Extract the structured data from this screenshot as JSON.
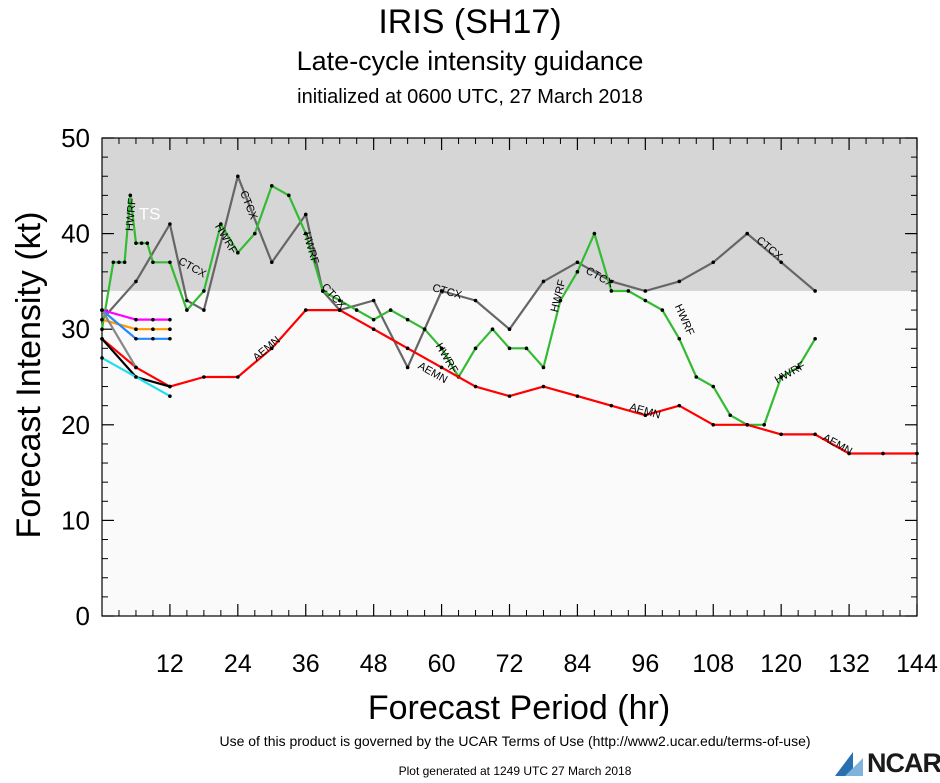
{
  "title": "IRIS (SH17)",
  "subtitle": "Late-cycle intensity guidance",
  "initialized": "initialized at 0600 UTC, 27 March 2018",
  "footer": {
    "terms": "Use of this product is governed by the UCAR Terms of Use (http://www2.ucar.edu/terms-of-use)",
    "generated": "Plot generated at 1249 UTC  27 March 2018",
    "logo": "NCAR"
  },
  "colors": {
    "ts_band": "#d6d6d6",
    "below_band": "#fafafa"
  },
  "chart_data": {
    "type": "line",
    "xlabel": "Forecast Period (hr)",
    "ylabel": "Forecast Intensity (kt)",
    "xlim": [
      0,
      144
    ],
    "ylim": [
      0,
      50
    ],
    "xticks": [
      12,
      24,
      36,
      48,
      60,
      72,
      84,
      96,
      108,
      120,
      132,
      144
    ],
    "yticks": [
      0,
      10,
      20,
      30,
      40,
      50
    ],
    "bands": [
      {
        "label": "TS",
        "from": 34,
        "to": 50,
        "color": "#d6d6d6"
      }
    ],
    "series": [
      {
        "name": "CTCX",
        "color": "#666666",
        "x": [
          0,
          6,
          12,
          15,
          18,
          24,
          30,
          36,
          39,
          42,
          48,
          54,
          60,
          66,
          72,
          78,
          84,
          90,
          96,
          102,
          108,
          114,
          120,
          126
        ],
        "y": [
          31,
          35,
          41,
          33,
          32,
          46,
          37,
          42,
          34,
          32,
          33,
          26,
          34,
          33,
          30,
          35,
          37,
          35,
          34,
          35,
          37,
          40,
          37,
          34
        ],
        "labels": [
          {
            "x": 16,
            "y": 36.5
          },
          {
            "x": 26,
            "y": 43
          },
          {
            "x": 41,
            "y": 33.5
          },
          {
            "x": 61,
            "y": 34
          },
          {
            "x": 88,
            "y": 35.5
          },
          {
            "x": 118,
            "y": 38.5
          }
        ]
      },
      {
        "name": "HWRF",
        "color": "#33bb33",
        "x": [
          0,
          2,
          3,
          4,
          5,
          6,
          7,
          8,
          9,
          12,
          15,
          18,
          21,
          24,
          27,
          30,
          33,
          36,
          39,
          42,
          45,
          48,
          51,
          54,
          57,
          60,
          63,
          66,
          69,
          72,
          75,
          78,
          81,
          84,
          87,
          90,
          93,
          96,
          99,
          102,
          105,
          108,
          111,
          114,
          117,
          120,
          123,
          126
        ],
        "y": [
          30,
          37,
          37,
          37,
          44,
          39,
          39,
          39,
          37,
          37,
          32,
          34,
          41,
          38,
          40,
          45,
          44,
          40,
          34,
          33,
          32,
          31,
          32,
          31,
          30,
          28,
          25,
          28,
          30,
          28,
          28,
          26,
          33,
          36,
          40,
          34,
          34,
          33,
          32,
          29,
          25,
          24,
          21,
          20,
          20,
          25,
          26,
          29
        ],
        "labels": [
          {
            "x": 5,
            "y": 42
          },
          {
            "x": 22,
            "y": 39.5
          },
          {
            "x": 37,
            "y": 38.5
          },
          {
            "x": 61,
            "y": 27
          },
          {
            "x": 80.5,
            "y": 33.5
          },
          {
            "x": 103,
            "y": 31
          },
          {
            "x": 121.5,
            "y": 25.5
          }
        ]
      },
      {
        "name": "AEMN",
        "color": "#ff0000",
        "x": [
          0,
          6,
          12,
          18,
          24,
          30,
          36,
          42,
          48,
          54,
          60,
          66,
          72,
          78,
          84,
          90,
          96,
          102,
          108,
          114,
          120,
          126,
          132,
          138,
          144
        ],
        "y": [
          29,
          26,
          24,
          25,
          25,
          28,
          32,
          32,
          30,
          28,
          26,
          24,
          23,
          24,
          23,
          22,
          21,
          22,
          20,
          20,
          19,
          19,
          17,
          17,
          17
        ],
        "labels": [
          {
            "x": 29,
            "y": 28
          },
          {
            "x": 58.5,
            "y": 25.5
          },
          {
            "x": 96,
            "y": 21.5
          },
          {
            "x": 130,
            "y": 18
          }
        ]
      },
      {
        "name": "",
        "color": "#ff00ff",
        "x": [
          0,
          6,
          9,
          12
        ],
        "y": [
          32,
          31,
          31,
          31
        ],
        "labels": []
      },
      {
        "name": "",
        "color": "#ff9900",
        "x": [
          0,
          6,
          9,
          12
        ],
        "y": [
          31,
          30,
          30,
          30
        ],
        "labels": []
      },
      {
        "name": "",
        "color": "#2288ff",
        "x": [
          0,
          6,
          9,
          12
        ],
        "y": [
          32,
          29,
          29,
          29
        ],
        "labels": []
      },
      {
        "name": "",
        "color": "#000000",
        "x": [
          0,
          6,
          12
        ],
        "y": [
          29,
          25,
          24
        ],
        "labels": []
      },
      {
        "name": "",
        "color": "#22ddee",
        "x": [
          0,
          6,
          12
        ],
        "y": [
          27,
          25,
          23
        ],
        "labels": []
      },
      {
        "name": "",
        "color": "#888888",
        "x": [
          0,
          6
        ],
        "y": [
          32,
          26
        ],
        "labels": []
      }
    ]
  }
}
